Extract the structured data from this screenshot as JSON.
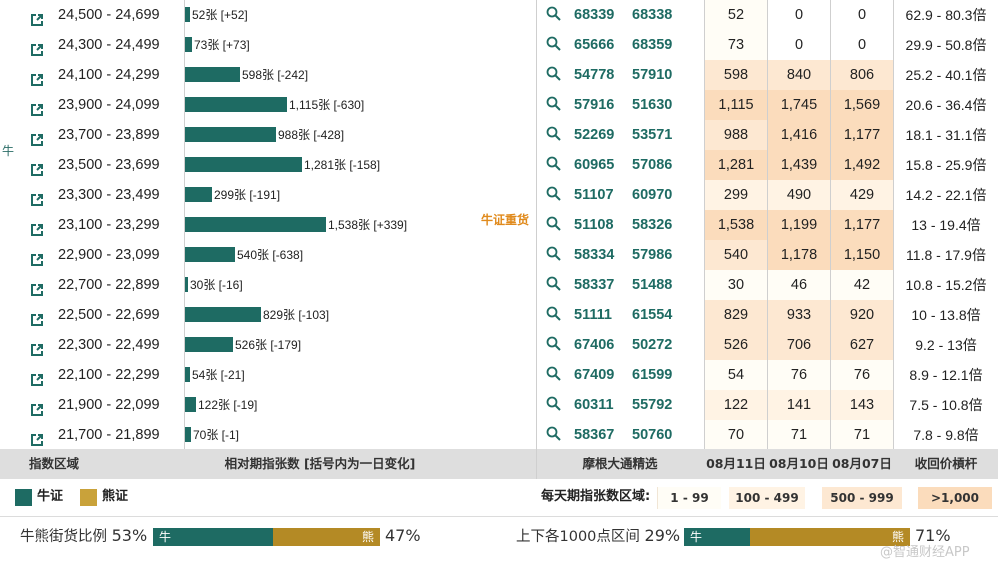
{
  "colors": {
    "bull": "#1e6b63",
    "bear": "#b48a25",
    "heat_1": "#fffdf6",
    "heat_2": "#fff3e4",
    "heat_3": "#fde8d2",
    "heat_4": "#fbdcbc"
  },
  "side_label": "牛",
  "heavy_label": "牛证重货",
  "rows": [
    {
      "range": "24,500 - 24,699",
      "bar_value": 52,
      "bar_label": "52张 [+52]",
      "code1": "68339",
      "code2": "68338",
      "d1": "52",
      "d2": "0",
      "d3": "0",
      "leverage": "62.9 - 80.3倍",
      "heat": [
        1,
        0,
        0
      ]
    },
    {
      "range": "24,300 - 24,499",
      "bar_value": 73,
      "bar_label": "73张 [+73]",
      "code1": "65666",
      "code2": "68359",
      "d1": "73",
      "d2": "0",
      "d3": "0",
      "leverage": "29.9 - 50.8倍",
      "heat": [
        1,
        0,
        0
      ]
    },
    {
      "range": "24,100 - 24,299",
      "bar_value": 598,
      "bar_label": "598张 [-242]",
      "code1": "54778",
      "code2": "57910",
      "d1": "598",
      "d2": "840",
      "d3": "806",
      "leverage": "25.2 - 40.1倍",
      "heat": [
        3,
        3,
        3
      ]
    },
    {
      "range": "23,900 - 24,099",
      "bar_value": 1115,
      "bar_label": "1,115张 [-630]",
      "code1": "57916",
      "code2": "51630",
      "d1": "1,115",
      "d2": "1,745",
      "d3": "1,569",
      "leverage": "20.6 - 36.4倍",
      "heat": [
        4,
        4,
        4
      ]
    },
    {
      "range": "23,700 - 23,899",
      "bar_value": 988,
      "bar_label": "988张 [-428]",
      "code1": "52269",
      "code2": "53571",
      "d1": "988",
      "d2": "1,416",
      "d3": "1,177",
      "leverage": "18.1 - 31.1倍",
      "heat": [
        3,
        4,
        4
      ]
    },
    {
      "range": "23,500 - 23,699",
      "bar_value": 1281,
      "bar_label": "1,281张 [-158]",
      "code1": "60965",
      "code2": "57086",
      "d1": "1,281",
      "d2": "1,439",
      "d3": "1,492",
      "leverage": "15.8 - 25.9倍",
      "heat": [
        4,
        4,
        4
      ]
    },
    {
      "range": "23,300 - 23,499",
      "bar_value": 299,
      "bar_label": "299张 [-191]",
      "code1": "51107",
      "code2": "60970",
      "d1": "299",
      "d2": "490",
      "d3": "429",
      "leverage": "14.2 - 22.1倍",
      "heat": [
        2,
        2,
        2
      ]
    },
    {
      "range": "23,100 - 23,299",
      "bar_value": 1538,
      "bar_label": "1,538张 [+339]",
      "code1": "51108",
      "code2": "58326",
      "d1": "1,538",
      "d2": "1,199",
      "d3": "1,177",
      "leverage": "13 - 19.4倍",
      "heat": [
        4,
        4,
        4
      ]
    },
    {
      "range": "22,900 - 23,099",
      "bar_value": 540,
      "bar_label": "540张 [-638]",
      "code1": "58334",
      "code2": "57986",
      "d1": "540",
      "d2": "1,178",
      "d3": "1,150",
      "leverage": "11.8 - 17.9倍",
      "heat": [
        3,
        4,
        4
      ]
    },
    {
      "range": "22,700 - 22,899",
      "bar_value": 30,
      "bar_label": "30张 [-16]",
      "code1": "58337",
      "code2": "51488",
      "d1": "30",
      "d2": "46",
      "d3": "42",
      "leverage": "10.8 - 15.2倍",
      "heat": [
        1,
        1,
        1
      ]
    },
    {
      "range": "22,500 - 22,699",
      "bar_value": 829,
      "bar_label": "829张 [-103]",
      "code1": "51111",
      "code2": "61554",
      "d1": "829",
      "d2": "933",
      "d3": "920",
      "leverage": "10 - 13.8倍",
      "heat": [
        3,
        3,
        3
      ]
    },
    {
      "range": "22,300 - 22,499",
      "bar_value": 526,
      "bar_label": "526张 [-179]",
      "code1": "67406",
      "code2": "50272",
      "d1": "526",
      "d2": "706",
      "d3": "627",
      "leverage": "9.2 - 13倍",
      "heat": [
        3,
        3,
        3
      ]
    },
    {
      "range": "22,100 - 22,299",
      "bar_value": 54,
      "bar_label": "54张 [-21]",
      "code1": "67409",
      "code2": "61599",
      "d1": "54",
      "d2": "76",
      "d3": "76",
      "leverage": "8.9 - 12.1倍",
      "heat": [
        1,
        1,
        1
      ]
    },
    {
      "range": "21,900 - 22,099",
      "bar_value": 122,
      "bar_label": "122张 [-19]",
      "code1": "60311",
      "code2": "55792",
      "d1": "122",
      "d2": "141",
      "d3": "143",
      "leverage": "7.5 - 10.8倍",
      "heat": [
        2,
        2,
        2
      ]
    },
    {
      "range": "21,700 - 21,899",
      "bar_value": 70,
      "bar_label": "70张 [-1]",
      "code1": "58367",
      "code2": "50760",
      "d1": "70",
      "d2": "71",
      "d3": "71",
      "leverage": "7.8 - 9.8倍",
      "heat": [
        1,
        1,
        1
      ]
    }
  ],
  "header": {
    "range": "指数区域",
    "bars": "相对期指张数 [括号内为一日变化]",
    "picks": "摩根大通精选",
    "date1": "08月11日",
    "date2": "08月10日",
    "date3": "08月07日",
    "leverage": "收回价槓杆"
  },
  "legend": {
    "bull": "牛证",
    "bear": "熊证",
    "range_title": "每天期指张数区域:",
    "ranges": [
      "1 - 99",
      "100 - 499",
      "500 - 999",
      ">1,000"
    ]
  },
  "ratio1": {
    "label": "牛熊街货比例",
    "bull_pct": "53%",
    "bear_pct": "47%",
    "bull_fraction": 0.53,
    "bull_tag": "牛",
    "bear_tag": "熊"
  },
  "ratio2": {
    "label": "上下各1000点区间",
    "bull_pct": "29%",
    "bear_pct": "71%",
    "bull_fraction": 0.29,
    "bull_tag": "牛",
    "bear_tag": "熊"
  },
  "watermark": "@智通财经APP"
}
